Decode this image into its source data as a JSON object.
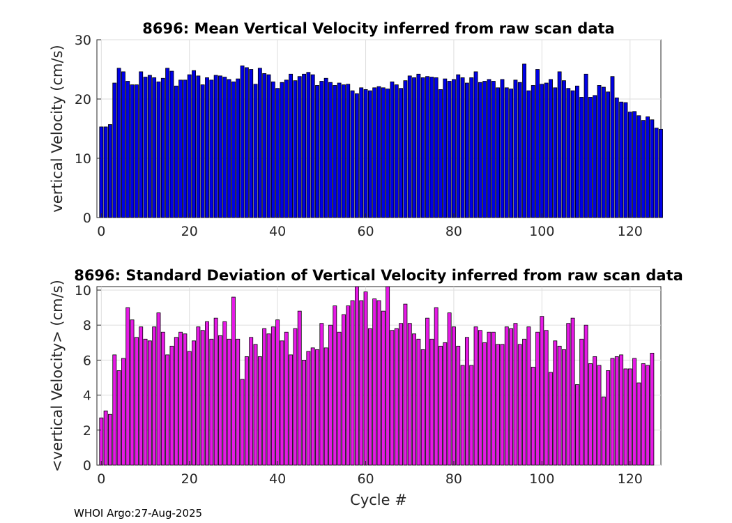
{
  "footer": "WHOI Argo:27-Aug-2025",
  "colors": {
    "top_bar": "#0000e6",
    "bottom_bar": "#e619e6",
    "edge": "#000000",
    "grid": "#dddddd"
  },
  "chart_data": [
    {
      "type": "bar",
      "title": "8696: Mean Vertical Velocity inferred from raw scan data",
      "xlabel": "",
      "ylabel": "vertical Velocity (cm/s)",
      "xlim": [
        -1,
        127
      ],
      "ylim": [
        0,
        30
      ],
      "xticks": [
        0,
        20,
        40,
        60,
        80,
        100,
        120
      ],
      "yticks": [
        0,
        10,
        20,
        30
      ],
      "x_start": 0,
      "values": [
        15.3,
        15.3,
        15.7,
        22.7,
        25.2,
        24.6,
        23.0,
        22.4,
        22.4,
        24.6,
        23.7,
        24.0,
        23.6,
        22.9,
        23.5,
        25.2,
        24.7,
        22.2,
        23.2,
        23.2,
        24.1,
        24.8,
        23.9,
        22.4,
        23.6,
        23.2,
        24.0,
        23.9,
        23.7,
        23.3,
        22.9,
        23.4,
        25.6,
        25.3,
        25.0,
        22.5,
        25.2,
        24.3,
        24.1,
        22.9,
        21.8,
        22.8,
        23.2,
        24.2,
        23.1,
        23.8,
        24.2,
        24.5,
        24.1,
        22.3,
        23.0,
        23.5,
        22.8,
        22.3,
        22.7,
        22.4,
        22.5,
        21.4,
        20.9,
        21.9,
        21.6,
        21.4,
        21.9,
        22.1,
        21.9,
        21.7,
        22.9,
        22.4,
        21.8,
        23.1,
        23.9,
        23.6,
        24.2,
        23.6,
        23.8,
        23.7,
        23.6,
        21.6,
        23.4,
        23.0,
        23.3,
        24.1,
        23.6,
        22.7,
        23.6,
        24.6,
        22.8,
        23.0,
        23.3,
        23.0,
        21.9,
        23.3,
        21.9,
        21.7,
        23.2,
        22.8,
        25.9,
        21.4,
        22.3,
        25.0,
        22.5,
        22.7,
        23.3,
        21.9,
        24.6,
        23.1,
        21.8,
        21.4,
        22.2,
        20.3,
        24.2,
        20.3,
        20.6,
        22.3,
        22.0,
        21.2,
        23.8,
        20.2,
        19.5,
        19.4,
        17.8,
        17.9,
        17.2,
        16.4,
        17.0,
        16.5,
        15.1,
        14.9
      ]
    },
    {
      "type": "bar",
      "title": "8696: Standard Deviation of Vertical Velocity inferred from raw scan data",
      "xlabel": "Cycle #",
      "ylabel": "<vertical Velocity> (cm/s)",
      "xlim": [
        -1,
        127
      ],
      "ylim": [
        0,
        10.2
      ],
      "xticks": [
        0,
        20,
        40,
        60,
        80,
        100,
        120
      ],
      "yticks": [
        0,
        2,
        4,
        6,
        8,
        10
      ],
      "x_start": 0,
      "values": [
        2.7,
        3.1,
        2.9,
        6.3,
        5.4,
        6.1,
        9.0,
        8.3,
        7.3,
        7.9,
        7.2,
        7.1,
        7.9,
        8.7,
        7.6,
        6.3,
        6.8,
        7.3,
        7.6,
        7.5,
        6.5,
        7.1,
        7.9,
        7.7,
        8.2,
        7.2,
        8.4,
        7.4,
        8.2,
        7.2,
        9.6,
        7.2,
        4.9,
        6.2,
        7.3,
        6.9,
        6.2,
        7.8,
        7.5,
        7.9,
        8.3,
        7.1,
        7.6,
        6.3,
        7.8,
        8.8,
        6.0,
        6.5,
        6.7,
        6.6,
        8.1,
        6.7,
        8.0,
        9.1,
        7.6,
        8.6,
        9.1,
        9.4,
        10.2,
        9.4,
        9.9,
        7.8,
        9.5,
        9.4,
        8.8,
        10.2,
        7.7,
        7.8,
        8.1,
        9.2,
        8.1,
        7.5,
        7.2,
        6.6,
        8.4,
        7.2,
        9.0,
        6.8,
        7.0,
        8.7,
        7.9,
        6.8,
        5.7,
        7.3,
        5.7,
        7.9,
        7.7,
        7.0,
        7.6,
        7.6,
        6.9,
        6.9,
        7.9,
        7.8,
        8.1,
        6.9,
        7.2,
        7.9,
        5.6,
        7.6,
        8.5,
        7.7,
        5.3,
        7.1,
        6.8,
        6.6,
        8.1,
        8.4,
        4.6,
        7.2,
        8.0,
        5.8,
        6.2,
        5.7,
        3.9,
        5.4,
        6.1,
        6.2,
        6.3,
        5.5,
        5.5,
        6.1,
        4.7,
        5.8,
        5.7,
        6.4
      ]
    }
  ]
}
